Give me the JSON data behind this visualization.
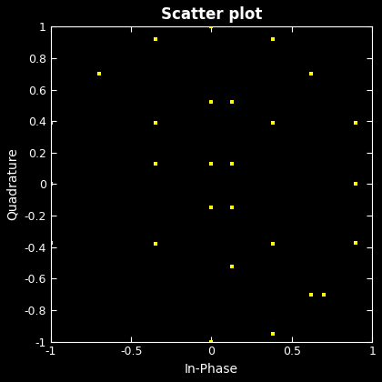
{
  "title": "Scatter plot",
  "xlabel": "In-Phase",
  "ylabel": "Quadrature",
  "xlim": [
    -1,
    1
  ],
  "ylim": [
    -1,
    1
  ],
  "xticks": [
    -1,
    -0.5,
    0,
    0.5,
    1
  ],
  "yticks": [
    -1,
    -0.8,
    -0.6,
    -0.4,
    -0.2,
    0,
    0.2,
    0.4,
    0.6,
    0.8,
    1
  ],
  "background_color": "#000000",
  "axes_color": "#000000",
  "spine_color": "#ffffff",
  "tick_color": "#ffffff",
  "label_color": "#ffffff",
  "title_color": "#ffffff",
  "marker_color": "#ffff00",
  "marker": "s",
  "marker_size": 3,
  "x": [
    -1.0,
    -1.0,
    -1.0,
    -0.7,
    -0.35,
    -0.35,
    -0.35,
    -0.35,
    0.0,
    0.0,
    0.0,
    0.0,
    0.0,
    0.13,
    0.13,
    0.13,
    0.13,
    0.38,
    0.38,
    0.38,
    0.38,
    0.62,
    0.62,
    0.7,
    0.9,
    0.9,
    0.9
  ],
  "y": [
    0.0,
    0.39,
    -0.37,
    0.7,
    0.92,
    0.39,
    0.13,
    -0.38,
    1.0,
    0.52,
    0.13,
    -0.15,
    -1.0,
    0.52,
    0.13,
    -0.15,
    -0.52,
    0.92,
    0.39,
    -0.38,
    -0.95,
    0.7,
    -0.7,
    -0.7,
    0.39,
    0.0,
    -0.37
  ],
  "figsize": [
    4.2,
    4.2
  ],
  "dpi": 100,
  "title_fontsize": 12,
  "label_fontsize": 10,
  "tick_fontsize": 9
}
